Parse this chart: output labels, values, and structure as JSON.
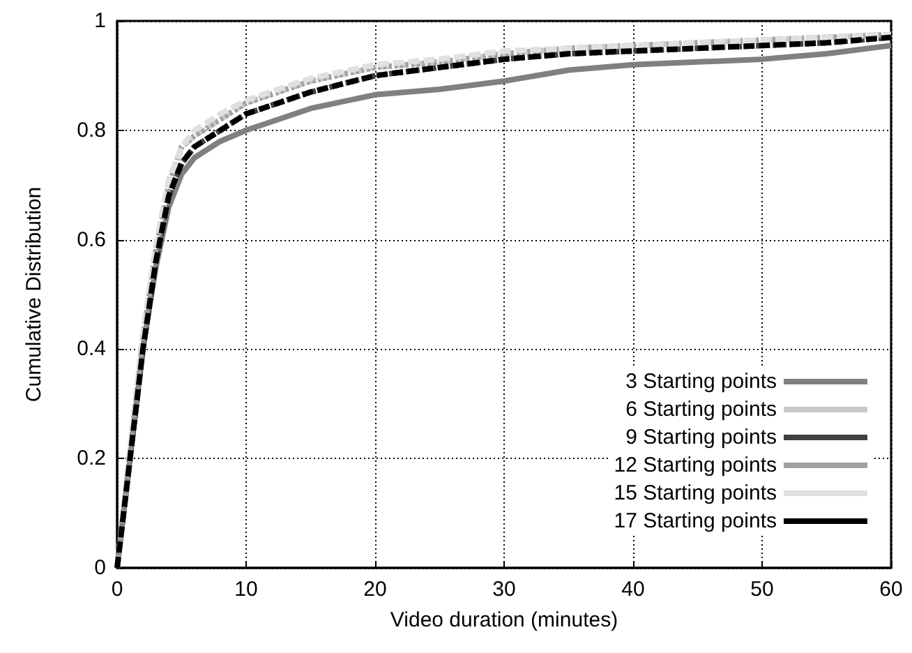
{
  "chart_data": {
    "type": "line",
    "xlabel": "Video duration (minutes)",
    "ylabel": "Cumulative Distribution",
    "xlim": [
      0,
      60
    ],
    "xticks": [
      0,
      10,
      20,
      30,
      40,
      50,
      60
    ],
    "ylim": [
      0,
      1
    ],
    "yticks": [
      0,
      0.2,
      0.4,
      0.6,
      0.8,
      1
    ],
    "grid": true,
    "legend": "bottom right",
    "marker": "none",
    "x": [
      0,
      1,
      2,
      3,
      4,
      5,
      6,
      8,
      10,
      15,
      20,
      25,
      30,
      35,
      40,
      45,
      50,
      55,
      60
    ],
    "series": [
      {
        "name": "3 Starting points",
        "color": "#808080",
        "line_style": "solid",
        "values": [
          0,
          0.2,
          0.4,
          0.55,
          0.66,
          0.72,
          0.75,
          0.78,
          0.8,
          0.84,
          0.865,
          0.875,
          0.89,
          0.91,
          0.92,
          0.925,
          0.93,
          0.94,
          0.955
        ]
      },
      {
        "name": "6 Starting points",
        "color": "#c8c8c8",
        "line_style": "dashed",
        "values": [
          0,
          0.21,
          0.42,
          0.58,
          0.7,
          0.77,
          0.79,
          0.82,
          0.85,
          0.89,
          0.915,
          0.925,
          0.94,
          0.95,
          0.955,
          0.96,
          0.965,
          0.97,
          0.975
        ]
      },
      {
        "name": "9 Starting points",
        "color": "#404040",
        "line_style": "dotted",
        "values": [
          0,
          0.2,
          0.4,
          0.56,
          0.68,
          0.74,
          0.77,
          0.8,
          0.83,
          0.87,
          0.9,
          0.915,
          0.93,
          0.94,
          0.945,
          0.95,
          0.955,
          0.96,
          0.97
        ]
      },
      {
        "name": "12 Starting points",
        "color": "#a0a0a0",
        "line_style": "dotted",
        "values": [
          0,
          0.21,
          0.42,
          0.58,
          0.7,
          0.77,
          0.79,
          0.82,
          0.85,
          0.89,
          0.915,
          0.925,
          0.94,
          0.95,
          0.955,
          0.96,
          0.965,
          0.97,
          0.975
        ]
      },
      {
        "name": "15 Starting points",
        "color": "#e0e0e0",
        "line_style": "dashed",
        "values": [
          0,
          0.22,
          0.43,
          0.59,
          0.71,
          0.77,
          0.8,
          0.83,
          0.855,
          0.895,
          0.92,
          0.93,
          0.945,
          0.95,
          0.955,
          0.96,
          0.965,
          0.97,
          0.975
        ]
      },
      {
        "name": "17 Starting points",
        "color": "#000000",
        "line_style": "dashed",
        "values": [
          0,
          0.2,
          0.4,
          0.56,
          0.68,
          0.74,
          0.77,
          0.8,
          0.83,
          0.87,
          0.9,
          0.915,
          0.93,
          0.94,
          0.945,
          0.95,
          0.955,
          0.96,
          0.97
        ]
      }
    ]
  }
}
